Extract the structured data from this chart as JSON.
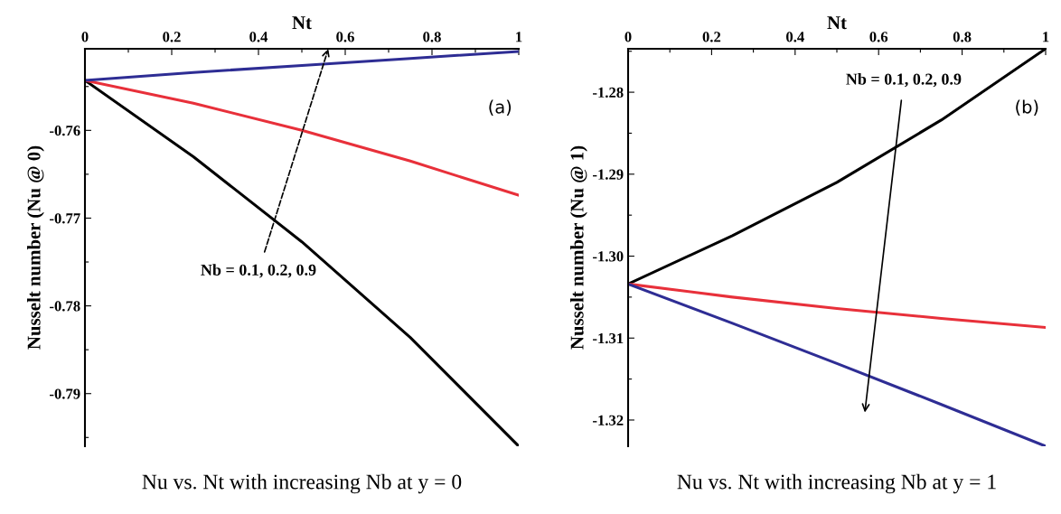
{
  "chart_data": [
    {
      "type": "line",
      "xlabel": "Nt",
      "ylabel": "Nusselt number (Nu @ 0)",
      "x": [
        0,
        0.25,
        0.5,
        0.75,
        1
      ],
      "series": [
        {
          "color": "#000000",
          "values": [
            -0.7543,
            -0.763,
            -0.7727,
            -0.7836,
            -0.796
          ]
        },
        {
          "color": "#e8303a",
          "values": [
            -0.7543,
            -0.7569,
            -0.76,
            -0.7635,
            -0.7674
          ]
        },
        {
          "color": "#2e2d94",
          "values": [
            -0.7543,
            -0.7534,
            -0.7526,
            -0.7518,
            -0.751
          ]
        }
      ],
      "xlim": [
        0,
        1
      ],
      "ylim": [
        -0.796,
        -0.7507
      ],
      "xticks": [
        0,
        {
          "value": 0.1,
          "label": null
        },
        0.2,
        {
          "value": 0.3,
          "label": null
        },
        0.4,
        {
          "value": 0.5,
          "label": null
        },
        0.6,
        {
          "value": 0.7,
          "label": null
        },
        0.8,
        {
          "value": 0.9,
          "label": null
        },
        1
      ],
      "yticks": [
        {
          "value": -0.795,
          "label": null
        },
        -0.79,
        {
          "value": -0.785,
          "label": null
        },
        -0.78,
        {
          "value": -0.775,
          "label": null
        },
        -0.77,
        {
          "value": -0.765,
          "label": null
        },
        -0.76,
        {
          "value": -0.755,
          "label": null
        }
      ],
      "annotations": [
        "Nb = 0.1, 0.2, 0.9",
        "(a)",
        "Nu vs. Nt with increasing Nb at y = 0"
      ],
      "grid": false,
      "legend": false,
      "line_style": "solid",
      "marker": "none"
    },
    {
      "type": "line",
      "xlabel": "Nt",
      "ylabel": "Nusselt number (Nu @ 1)",
      "x": [
        0,
        0.25,
        0.5,
        0.75,
        1
      ],
      "series": [
        {
          "color": "#000000",
          "values": [
            -1.3034,
            -1.2975,
            -1.291,
            -1.2834,
            -1.2747
          ]
        },
        {
          "color": "#e8303a",
          "values": [
            -1.3034,
            -1.305,
            -1.3064,
            -1.3076,
            -1.3087
          ]
        },
        {
          "color": "#2e2d94",
          "values": [
            -1.3034,
            -1.3082,
            -1.3131,
            -1.3181,
            -1.3232
          ]
        }
      ],
      "xlim": [
        0,
        1
      ],
      "ylim": [
        -1.3232,
        -1.2747
      ],
      "xticks": [
        0,
        {
          "value": 0.1,
          "label": null
        },
        0.2,
        {
          "value": 0.3,
          "label": null
        },
        0.4,
        {
          "value": 0.5,
          "label": null
        },
        0.6,
        {
          "value": 0.7,
          "label": null
        },
        0.8,
        {
          "value": 0.9,
          "label": null
        },
        1
      ],
      "yticks": [
        -1.32,
        {
          "value": -1.315,
          "label": null
        },
        -1.31,
        {
          "value": -1.305,
          "label": null
        },
        {
          "value": -1.3,
          "label": "-1.30"
        },
        {
          "value": -1.295,
          "label": null
        },
        -1.29,
        {
          "value": -1.285,
          "label": null
        },
        -1.28,
        {
          "value": -1.275,
          "label": null
        }
      ],
      "annotations": [
        "Nb = 0.1, 0.2, 0.9",
        "(b)",
        "Nu vs. Nt with increasing Nb at y = 1"
      ],
      "grid": false,
      "legend": false,
      "line_style": "solid",
      "marker": "none"
    }
  ]
}
